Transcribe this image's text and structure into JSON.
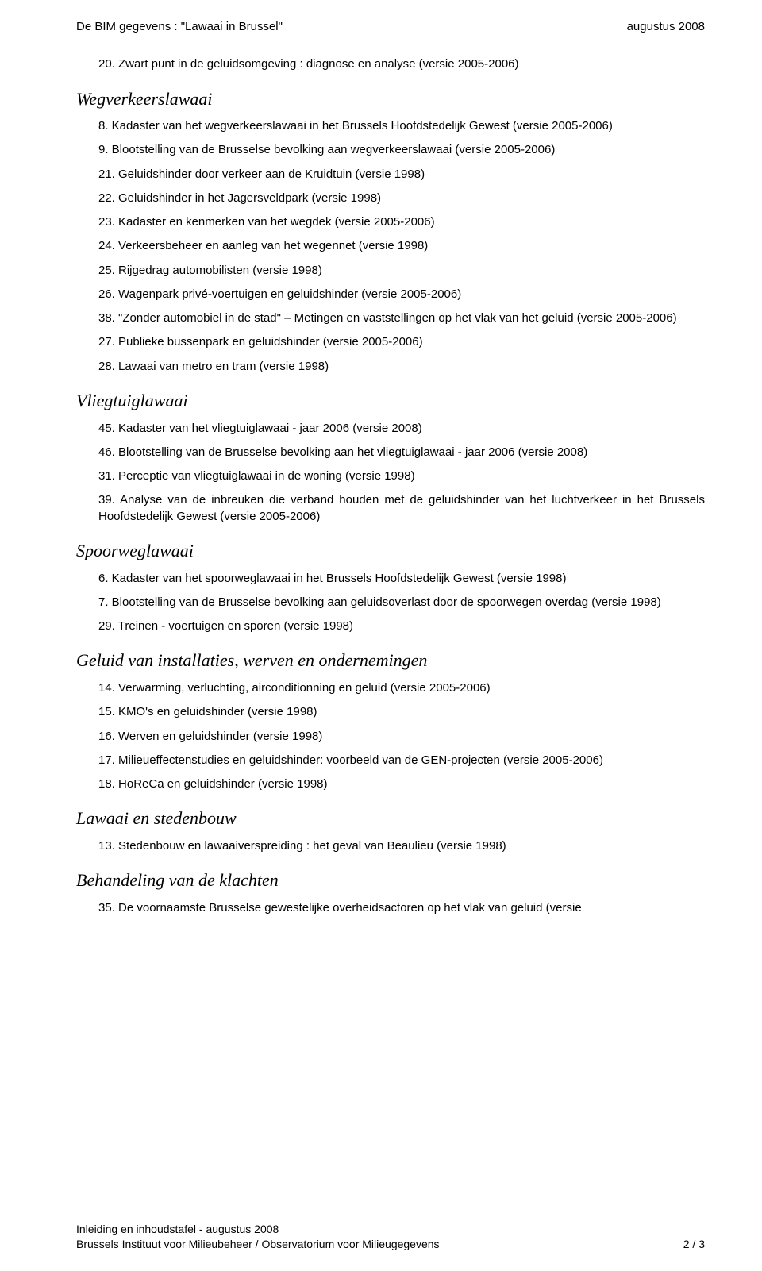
{
  "header": {
    "left": "De BIM gegevens : \"Lawaai in Brussel\"",
    "right": "augustus 2008"
  },
  "intro_entries": [
    "20. Zwart punt in de geluidsomgeving : diagnose en analyse (versie 2005-2006)"
  ],
  "sections": [
    {
      "heading": "Wegverkeerslawaai",
      "entries": [
        "8. Kadaster van het wegverkeerslawaai in het Brussels Hoofdstedelijk Gewest (versie 2005-2006)",
        "9. Blootstelling van de Brusselse bevolking aan wegverkeerslawaai (versie 2005-2006)",
        "21. Geluidshinder door verkeer aan de Kruidtuin (versie 1998)",
        "22. Geluidshinder in het Jagersveldpark (versie 1998)",
        "23. Kadaster en kenmerken van het wegdek (versie 2005-2006)",
        "24. Verkeersbeheer en aanleg van het wegennet (versie 1998)",
        "25. Rijgedrag automobilisten (versie 1998)",
        "26. Wagenpark privé-voertuigen en geluidshinder (versie 2005-2006)",
        "38. \"Zonder automobiel in de stad\" – Metingen en vaststellingen op het vlak van het geluid (versie 2005-2006)",
        "27. Publieke bussenpark en geluidshinder (versie 2005-2006)",
        "28. Lawaai van metro en tram (versie 1998)"
      ]
    },
    {
      "heading": "Vliegtuiglawaai",
      "entries": [
        "45. Kadaster van het vliegtuiglawaai - jaar 2006 (versie 2008)",
        "46. Blootstelling van de Brusselse bevolking aan het vliegtuiglawaai - jaar 2006 (versie 2008)",
        "31. Perceptie van vliegtuiglawaai in de woning (versie 1998)",
        "39. Analyse van de inbreuken die verband houden met de geluidshinder van het luchtverkeer in het Brussels Hoofdstedelijk Gewest (versie 2005-2006)"
      ]
    },
    {
      "heading": "Spoorweglawaai",
      "entries": [
        "6. Kadaster van het spoorweglawaai in het Brussels Hoofdstedelijk Gewest (versie 1998)",
        "7. Blootstelling van de Brusselse bevolking aan geluidsoverlast door de spoorwegen overdag (versie 1998)",
        "29. Treinen - voertuigen en sporen (versie 1998)"
      ]
    },
    {
      "heading": "Geluid van installaties, werven en ondernemingen",
      "entries": [
        "14. Verwarming, verluchting, airconditionning en geluid (versie 2005-2006)",
        "15. KMO's en geluidshinder (versie 1998)",
        "16. Werven en geluidshinder (versie 1998)",
        "17. Milieueffectenstudies en geluidshinder: voorbeeld van de GEN-projecten (versie 2005-2006)",
        "18. HoReCa en geluidshinder (versie 1998)"
      ]
    },
    {
      "heading": "Lawaai en stedenbouw",
      "entries": [
        "13. Stedenbouw en lawaaiverspreiding : het geval van Beaulieu (versie 1998)"
      ]
    },
    {
      "heading": "Behandeling van de klachten",
      "entries": [
        "35. De voornaamste Brusselse gewestelijke overheidsactoren op het vlak van geluid (versie"
      ]
    }
  ],
  "footer": {
    "line1": "Inleiding en inhoudstafel - augustus 2008",
    "line2": "Brussels Instituut voor Milieubeheer / Observatorium voor Milieugegevens",
    "page": "2 / 3"
  }
}
